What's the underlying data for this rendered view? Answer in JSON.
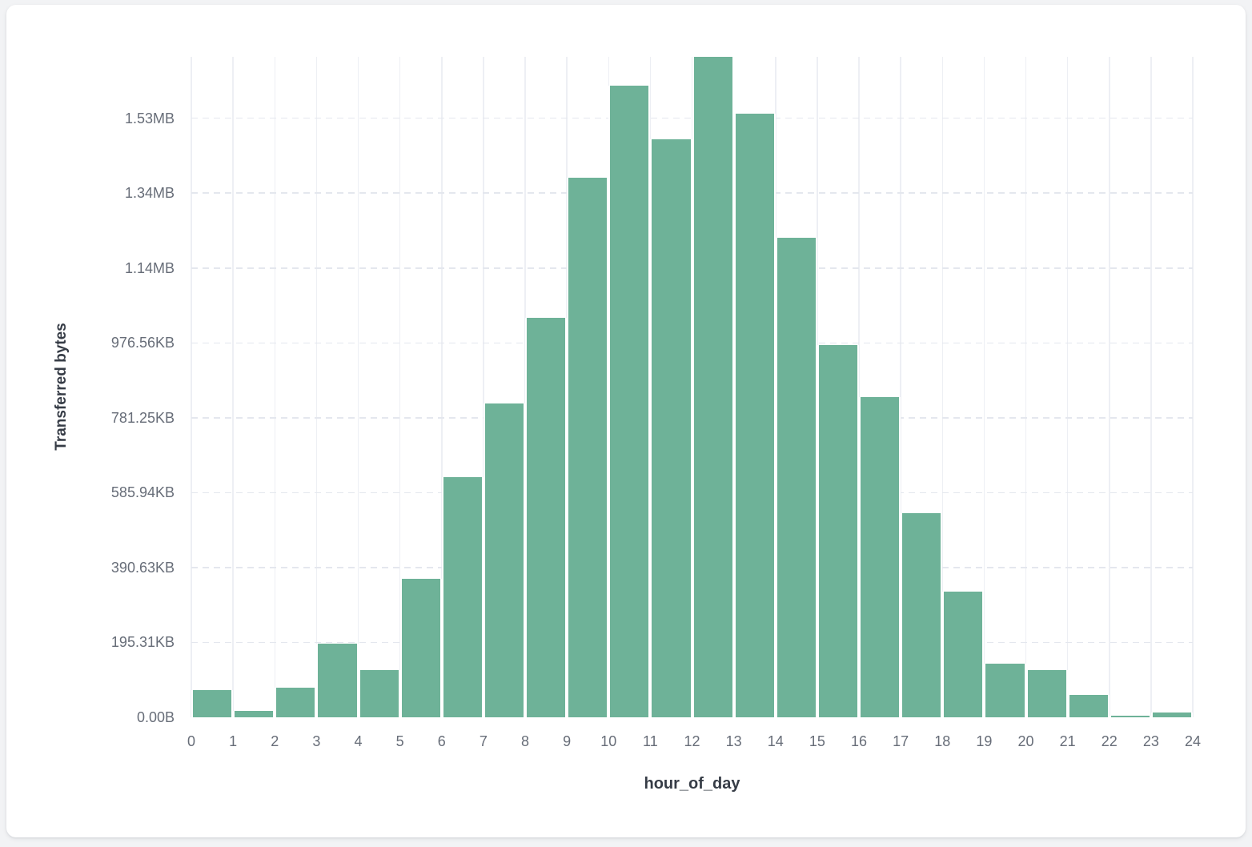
{
  "colors": {
    "page_background": "#f2f3f5",
    "card_background": "#ffffff",
    "bar_fill": "#6eb298",
    "vertical_grid": "#edeff4",
    "horizontal_grid": "#e4e7ee",
    "tick_label": "#676d78",
    "axis_title": "#363c46"
  },
  "chart_data": {
    "type": "bar",
    "title": "",
    "xlabel": "hour_of_day",
    "ylabel": "Transferred bytes",
    "x_bins": [
      0,
      1,
      2,
      3,
      4,
      5,
      6,
      7,
      8,
      9,
      10,
      11,
      12,
      13,
      14,
      15,
      16,
      17,
      18,
      19,
      20,
      21,
      22,
      23
    ],
    "values_bytes": [
      73000,
      16500,
      78500,
      197000,
      125500,
      370000,
      642000,
      838000,
      1067000,
      1442000,
      1688000,
      1544000,
      1764000,
      1613000,
      1281000,
      995000,
      856000,
      545000,
      336000,
      143000,
      126000,
      60000,
      4300,
      12800
    ],
    "x_tick_labels": [
      "0",
      "1",
      "2",
      "3",
      "4",
      "5",
      "6",
      "7",
      "8",
      "9",
      "10",
      "11",
      "12",
      "13",
      "14",
      "15",
      "16",
      "17",
      "18",
      "19",
      "20",
      "21",
      "22",
      "23",
      "24"
    ],
    "y_ticks": [
      {
        "label": "0.00B",
        "bytes": 0
      },
      {
        "label": "195.31KB",
        "bytes": 200000
      },
      {
        "label": "390.63KB",
        "bytes": 400000
      },
      {
        "label": "585.94KB",
        "bytes": 600000
      },
      {
        "label": "781.25KB",
        "bytes": 800000
      },
      {
        "label": "976.56KB",
        "bytes": 1000000
      },
      {
        "label": "1.14MB",
        "bytes": 1200000
      },
      {
        "label": "1.34MB",
        "bytes": 1400000
      },
      {
        "label": "1.53MB",
        "bytes": 1600000
      }
    ],
    "xlim": [
      0,
      24
    ],
    "ylim": [
      0,
      1764000
    ],
    "grid": {
      "vertical": "solid",
      "horizontal": "dashed"
    },
    "legend": "none"
  }
}
